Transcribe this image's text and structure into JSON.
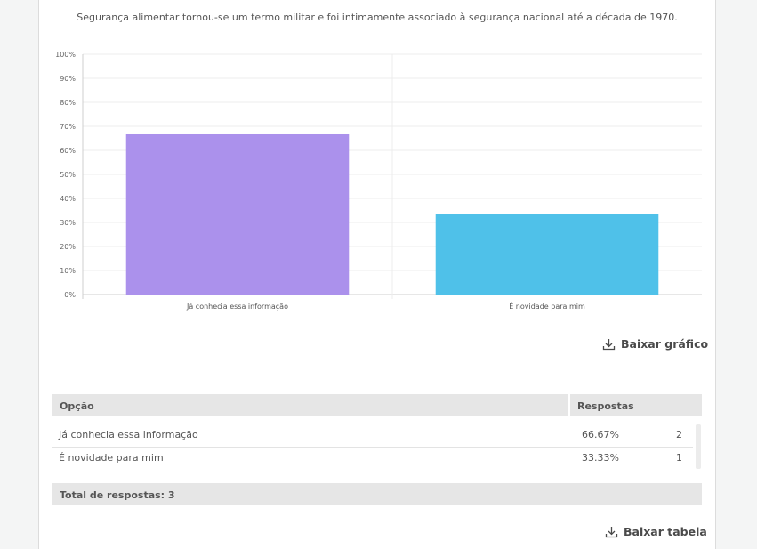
{
  "question": "Segurança alimentar tornou-se um termo militar e foi intimamente associado à segurança nacional até a década de 1970.",
  "chart_data": {
    "type": "bar",
    "categories": [
      "Já conhecia essa informação",
      "É novidade para mim"
    ],
    "values": [
      66.67,
      33.33
    ],
    "colors": [
      "#ab91ec",
      "#4fc1e9"
    ],
    "ylim": [
      0,
      100
    ],
    "yticks": [
      "0%",
      "10%",
      "20%",
      "30%",
      "40%",
      "50%",
      "60%",
      "70%",
      "80%",
      "90%",
      "100%"
    ],
    "grid": true,
    "title": "",
    "xlabel": "",
    "ylabel": ""
  },
  "download_chart": {
    "label": "Baixar gráfico",
    "icon": "download-icon"
  },
  "table": {
    "headers": {
      "option": "Opção",
      "responses": "Respostas"
    },
    "rows": [
      {
        "option": "Já conhecia essa informação",
        "percent": "66.67%",
        "count": "2"
      },
      {
        "option": "É novidade para mim",
        "percent": "33.33%",
        "count": "1"
      }
    ],
    "total": "Total de respostas: 3"
  },
  "download_table": {
    "label": "Baixar tabela",
    "icon": "download-icon"
  }
}
